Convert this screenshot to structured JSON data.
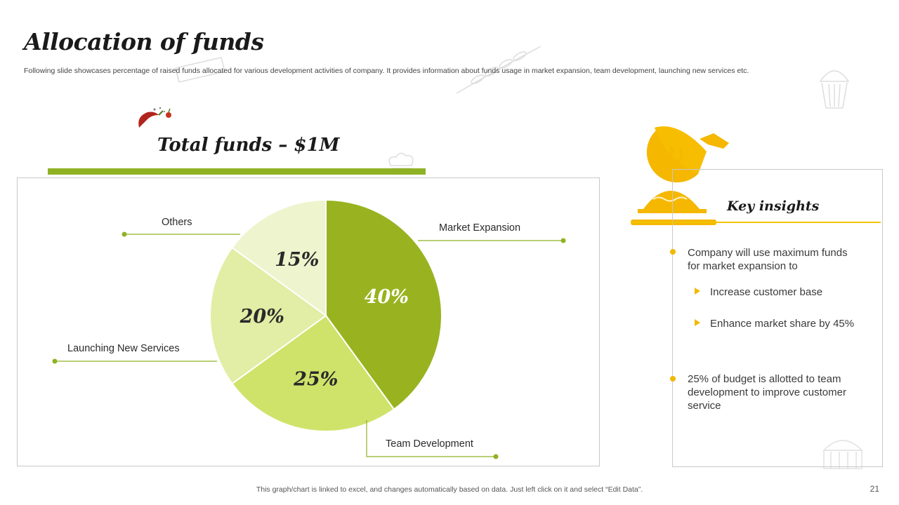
{
  "header": {
    "title": "Allocation of funds",
    "subtitle": "Following slide showcases percentage of raised funds allocated for various development activities of company. It provides information about funds usage in market expansion, team development, launching new services etc."
  },
  "total": {
    "title": "Total funds – $1M"
  },
  "chart_data": {
    "type": "pie",
    "categories": [
      "Market Expansion",
      "Team Development",
      "Launching New Services",
      "Others"
    ],
    "values": [
      40,
      25,
      20,
      15
    ],
    "data_labels": [
      "40%",
      "25%",
      "20%",
      "15%"
    ],
    "colors": [
      "#98b31f",
      "#cfe36a",
      "#e2eda5",
      "#eef4cd"
    ],
    "title": "",
    "legend": "callout-labels"
  },
  "insights": {
    "title": "Key insights",
    "items": [
      {
        "text": "Company will use maximum funds for market expansion to",
        "sub": [
          "Increase customer base",
          "Enhance market share by 45%"
        ]
      },
      {
        "text": "25% of budget is allotted to team development to improve customer service",
        "sub": []
      }
    ]
  },
  "footer": {
    "note": "This graph/chart is linked to excel,  and changes automatically based on data. Just left click on it and select “Edit Data”.",
    "page": "21"
  },
  "icons": {
    "decor": [
      "pepper-icon",
      "cloche-pie-icon",
      "wheat-icon",
      "cake-icon",
      "chef-hat-icon"
    ]
  },
  "colors": {
    "accent_green": "#8fb224",
    "accent_yellow": "#f2b800"
  }
}
